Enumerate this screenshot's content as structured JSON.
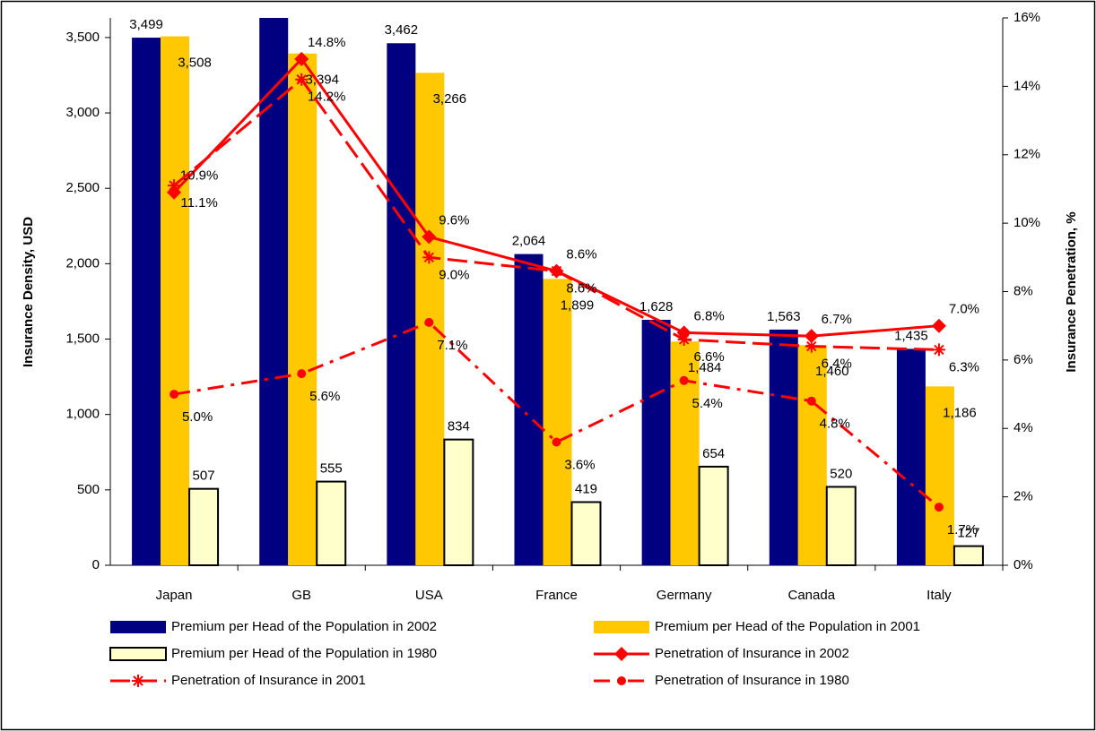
{
  "chart_data": {
    "type": "bar_line",
    "y_axis_label": "Insurance Density, USD",
    "y2_axis_label": "Insurance Penetration, %",
    "categories": [
      "Japan",
      "GB",
      "USA",
      "France",
      "Germany",
      "Canada",
      "Italy"
    ],
    "ylim": [
      0,
      3630
    ],
    "yticks": [
      0,
      500,
      {
        "value": 1000,
        "label": "1,000"
      },
      {
        "value": 1500,
        "label": "1,500"
      },
      {
        "value": 2000,
        "label": "2,000"
      },
      {
        "value": 2500,
        "label": "2,500"
      },
      {
        "value": 3000,
        "label": "3,000"
      },
      {
        "value": 3500,
        "label": "3,500"
      }
    ],
    "y2lim": [
      0,
      16
    ],
    "y2ticks": [
      {
        "value": 0,
        "label": "0%"
      },
      {
        "value": 2,
        "label": "2%"
      },
      {
        "value": 4,
        "label": "4%"
      },
      {
        "value": 6,
        "label": "6%"
      },
      {
        "value": 8,
        "label": "8%"
      },
      {
        "value": 10,
        "label": "10%"
      },
      {
        "value": 12,
        "label": "12%"
      },
      {
        "value": 14,
        "label": "14%"
      },
      {
        "value": 16,
        "label": "16%"
      }
    ],
    "series": [
      {
        "name": "Premium per Head of the Population in 2002",
        "type": "bar",
        "color": "#000080",
        "values": [
          3499,
          3630,
          3462,
          2064,
          1628,
          1563,
          1435
        ],
        "value_labels": [
          "3,499",
          null,
          "3,462",
          "2,064",
          "1,628",
          "1,563",
          "1,435"
        ]
      },
      {
        "name": "Premium per Head of the Population in 2001",
        "type": "bar",
        "color": "#FFC800",
        "values": [
          3508,
          3394,
          3266,
          1899,
          1484,
          1460,
          1186
        ],
        "value_labels": [
          "3,508",
          "3,394",
          "3,266",
          "1,899",
          "1,484",
          "1,460",
          "1,186"
        ]
      },
      {
        "name": "Premium per Head of the Population in 1980",
        "type": "bar",
        "color": "#FFFFCC",
        "values": [
          507,
          555,
          834,
          419,
          654,
          520,
          127
        ]
      },
      {
        "name": "Penetration of Insurance in 2002",
        "type": "line",
        "axis": "y2",
        "color": "#FF0000",
        "line_style": "solid",
        "marker": "diamond",
        "values": [
          10.9,
          14.8,
          9.6,
          8.6,
          6.8,
          6.7,
          7.0
        ],
        "value_labels": [
          "10.9%",
          "14.8%",
          "9.6%",
          "8.6%",
          "6.8%",
          "6.7%",
          "7.0%"
        ]
      },
      {
        "name": "Penetration of Insurance in 2001",
        "type": "line",
        "axis": "y2",
        "color": "#FF0000",
        "line_style": "dashed",
        "marker": "star",
        "values": [
          11.1,
          14.2,
          9.0,
          8.6,
          6.6,
          6.4,
          6.3
        ],
        "value_labels": [
          "11.1%",
          "14.2%",
          "9.0%",
          "8.6%",
          "6.6%",
          "6.4%",
          "6.3%"
        ]
      },
      {
        "name": "Penetration of Insurance in 1980",
        "type": "line",
        "axis": "y2",
        "color": "#FF0000",
        "line_style": "dashdot",
        "marker": "circle",
        "values": [
          5.0,
          5.6,
          7.1,
          3.6,
          5.4,
          4.8,
          1.7
        ],
        "value_labels": [
          "5.0%",
          "5.6%",
          "7.1%",
          "3.6%",
          "5.4%",
          "4.8%",
          "1.7%"
        ]
      }
    ]
  }
}
